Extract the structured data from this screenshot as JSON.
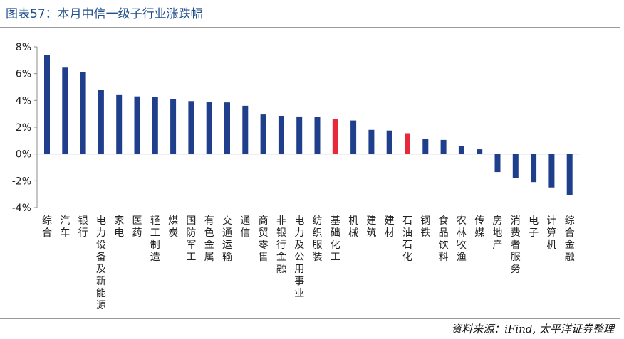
{
  "header": {
    "title": "图表57：本月中信一级子行业涨跌幅"
  },
  "footer": {
    "source": "资料来源：iFind, 太平洋证券整理"
  },
  "colors": {
    "bar": "#1f3f8c",
    "highlight": "#e8283b",
    "axis": "#8c8c8c"
  },
  "chart_data": {
    "type": "bar",
    "categories": [
      "综合",
      "汽车",
      "银行",
      "电力设备及新能源",
      "家电",
      "医药",
      "轻工制造",
      "煤炭",
      "国防军工",
      "有色金属",
      "交通运输",
      "通信",
      "商贸零售",
      "非银行金融",
      "电力及公用事业",
      "纺织服装",
      "基础化工",
      "机械",
      "建筑",
      "建材",
      "石油石化",
      "钢铁",
      "食品饮料",
      "农林牧渔",
      "传媒",
      "房地产",
      "消费者服务",
      "电子",
      "计算机",
      "综合金融"
    ],
    "values": [
      7.4,
      6.5,
      6.1,
      4.8,
      4.45,
      4.3,
      4.25,
      4.1,
      3.95,
      3.9,
      3.85,
      3.6,
      2.95,
      2.85,
      2.8,
      2.75,
      2.6,
      2.5,
      1.8,
      1.75,
      1.55,
      1.1,
      1.05,
      0.6,
      0.35,
      -1.35,
      -1.8,
      -2.1,
      -2.5,
      -3.05
    ],
    "highlighted": [
      "基础化工",
      "石油石化"
    ],
    "yticks": [
      "8%",
      "6%",
      "4%",
      "2%",
      "0%",
      "-2%",
      "-4%"
    ],
    "ylim": [
      -4,
      8
    ],
    "unit": "%"
  }
}
